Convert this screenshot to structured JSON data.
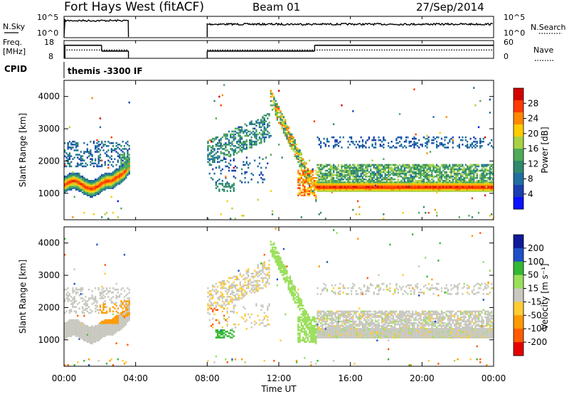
{
  "header": {
    "station": "Fort Hays West (fitACF)",
    "beam": "Beam 01",
    "date": "27/Sep/2014"
  },
  "labels": {
    "nsky": "N.Sky",
    "nsearch": "N.Search",
    "freq": "Freq.",
    "freq_unit": "[MHz]",
    "nave": "Nave",
    "cpid": "CPID",
    "cpid_value": "themis -3300 IF",
    "slant_range": "Slant Range [km]",
    "time_axis": "Time UT",
    "power_bar": "Power [dB]",
    "velocity_bar": "Velocity [m s⁻¹]"
  },
  "colors": {
    "velocity_scale": [
      "#e60000",
      "#ff5a00",
      "#ff9a00",
      "#ffcc33",
      "#c8c8c0",
      "#9adf5a",
      "#33b833",
      "#2050c8",
      "#101a9a"
    ],
    "power_scale": [
      "#0a12ff",
      "#1a3fb0",
      "#1f6fa0",
      "#2e8a6a",
      "#4faa5a",
      "#a8d244",
      "#ffcc00",
      "#ff8800",
      "#ff3a00",
      "#d40000"
    ]
  },
  "chart_data": [
    {
      "type": "line",
      "name": "noise-panel",
      "x_unit": "hours UT",
      "xlim": [
        0,
        24
      ],
      "left_axis": {
        "label": "N.Sky",
        "ticks": [
          "10^5",
          "10^0"
        ]
      },
      "right_axis": {
        "label": "N.Search",
        "ticks": [
          "10^5",
          "10^0"
        ]
      },
      "data_gaps": [
        [
          3.6,
          8.0
        ]
      ],
      "series": [
        {
          "name": "N.Sky",
          "style": "solid"
        },
        {
          "name": "N.Search",
          "style": "dotted"
        }
      ]
    },
    {
      "type": "line",
      "name": "freq-nave-panel",
      "x_unit": "hours UT",
      "xlim": [
        0,
        24
      ],
      "left_axis": {
        "label": "Freq. [MHz]",
        "ticks": [
          18,
          8
        ]
      },
      "right_axis": {
        "label": "Nave",
        "ticks": [
          60,
          0
        ]
      },
      "series": [
        {
          "name": "Freq.",
          "style": "solid",
          "segments": [
            [
              0,
              2.1,
              15.5
            ],
            [
              2.1,
              3.6,
              11.3
            ],
            [
              8.0,
              14.0,
              11.3
            ],
            [
              14.0,
              24.0,
              15.5
            ]
          ]
        },
        {
          "name": "Nave",
          "style": "dotted",
          "segments": [
            [
              0,
              3.6,
              28
            ],
            [
              8.0,
              24.0,
              28
            ]
          ]
        }
      ]
    },
    {
      "type": "heatmap",
      "name": "power-panel",
      "x_unit": "hours UT",
      "xlim": [
        0,
        24
      ],
      "ylim": [
        180,
        4500
      ],
      "xlabel": "",
      "ylabel": "Slant Range [km]",
      "y_ticks": [
        1000,
        2000,
        3000,
        4000
      ],
      "colorbar": {
        "label": "Power [dB]",
        "ticks": [
          4,
          8,
          12,
          16,
          20,
          24,
          28
        ]
      }
    },
    {
      "type": "heatmap",
      "name": "velocity-panel",
      "x_unit": "hours UT",
      "xlim": [
        0,
        24
      ],
      "ylim": [
        180,
        4500
      ],
      "xlabel": "Time UT",
      "ylabel": "Slant Range [km]",
      "x_ticks": [
        "00:00",
        "04:00",
        "08:00",
        "12:00",
        "16:00",
        "20:00",
        "00:00"
      ],
      "y_ticks": [
        1000,
        2000,
        3000,
        4000
      ],
      "colorbar": {
        "label": "Velocity [m s⁻¹]",
        "ticks": [
          200,
          100,
          50,
          15,
          -15,
          -50,
          -100,
          -200
        ]
      }
    }
  ]
}
